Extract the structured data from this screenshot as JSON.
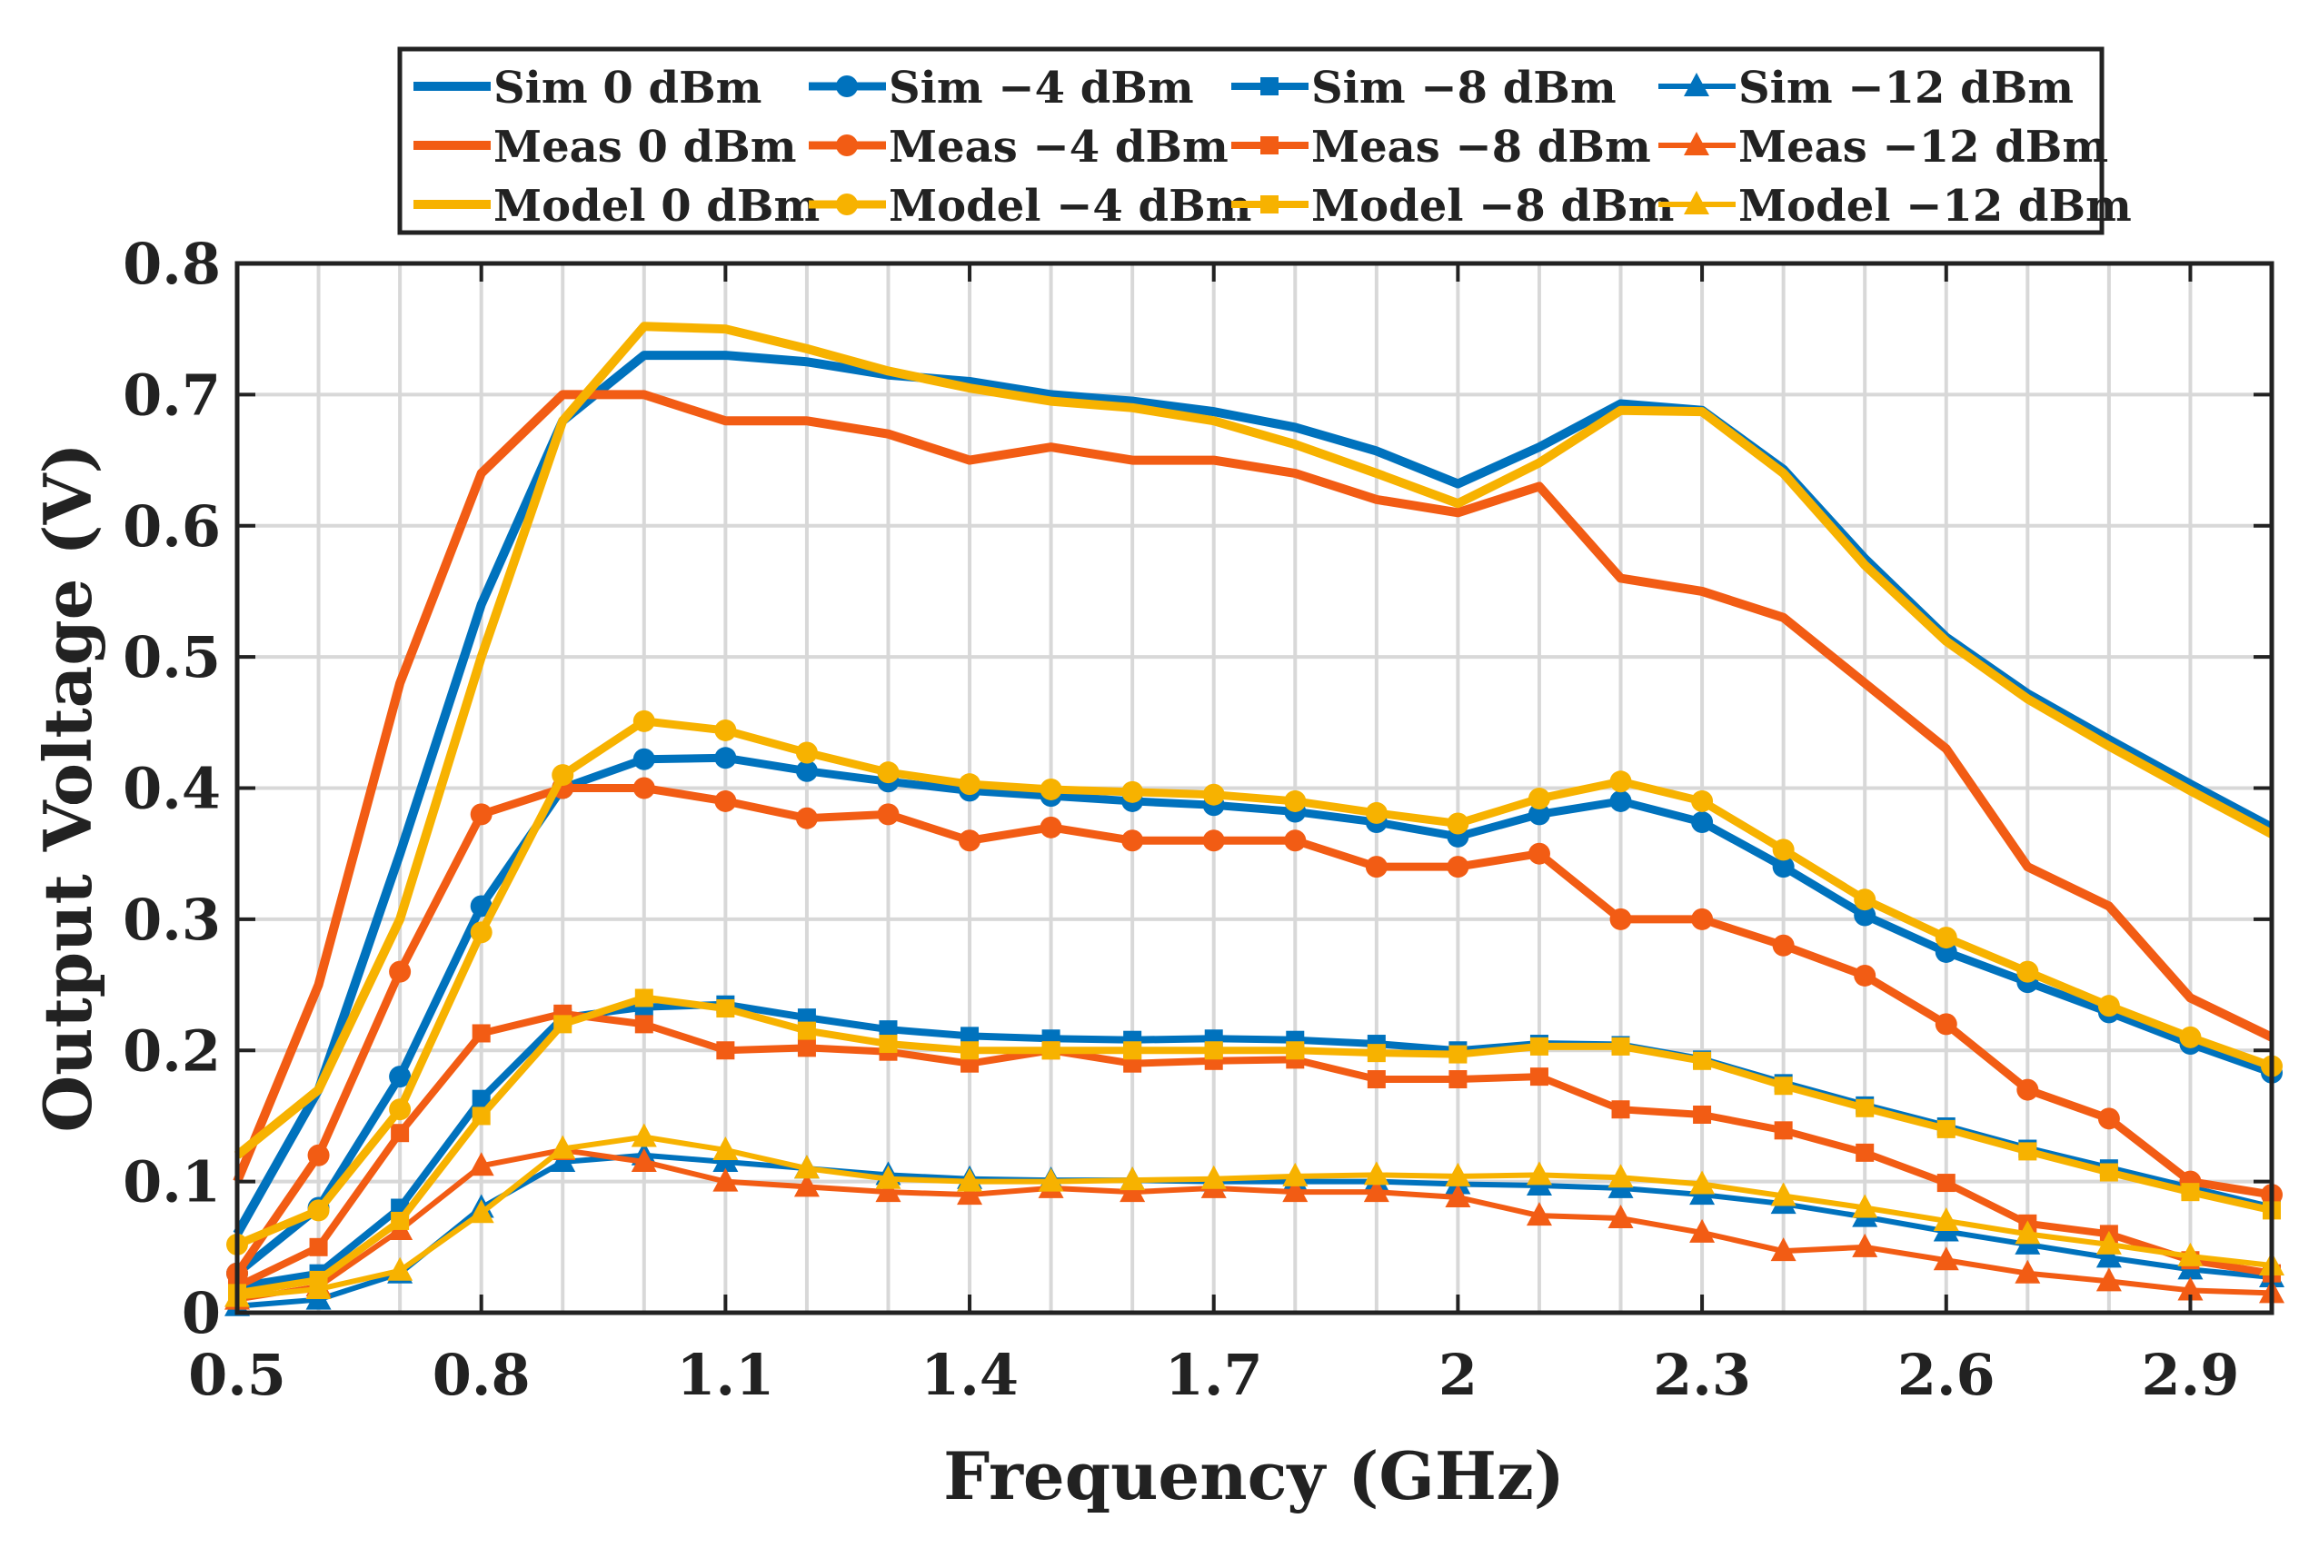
{
  "chart_data": {
    "type": "line",
    "title": "",
    "xlabel": "Frequency (GHz)",
    "ylabel": "Output Voltage (V)",
    "xlim": [
      0.5,
      3.0
    ],
    "ylim": [
      0,
      0.8
    ],
    "xticks": [
      0.5,
      0.8,
      1.1,
      1.4,
      1.7,
      2,
      2.3,
      2.6,
      2.9
    ],
    "xtick_labels": [
      "0.5",
      "0.8",
      "1.1",
      "1.4",
      "1.7",
      "2",
      "2.3",
      "2.6",
      "2.9"
    ],
    "yticks": [
      0,
      0.1,
      0.2,
      0.3,
      0.4,
      0.5,
      0.6,
      0.7,
      0.8
    ],
    "ytick_labels": [
      "0",
      "0.1",
      "0.2",
      "0.3",
      "0.4",
      "0.5",
      "0.6",
      "0.7",
      "0.8"
    ],
    "grid": true,
    "legend_position": "top-outside",
    "colors": {
      "sim": "#0072BD",
      "meas": "#F25C14",
      "model": "#F7B200"
    },
    "x": [
      0.5,
      0.6,
      0.7,
      0.8,
      0.9,
      1.0,
      1.1,
      1.2,
      1.3,
      1.4,
      1.5,
      1.6,
      1.7,
      1.8,
      1.9,
      2.0,
      2.1,
      2.2,
      2.3,
      2.4,
      2.5,
      2.6,
      2.7,
      2.8,
      2.9,
      3.0
    ],
    "series": [
      {
        "name": "Sim 0 dBm",
        "color": "#0072BD",
        "marker": "none",
        "values": [
          0.06,
          0.17,
          0.35,
          0.54,
          0.68,
          0.73,
          0.73,
          0.725,
          0.715,
          0.71,
          0.7,
          0.695,
          0.687,
          0.675,
          0.657,
          0.632,
          0.66,
          0.693,
          0.688,
          0.643,
          0.575,
          0.515,
          0.472,
          0.437,
          0.403,
          0.37
        ]
      },
      {
        "name": "Sim −4 dBm",
        "color": "#0072BD",
        "marker": "circle",
        "values": [
          0.03,
          0.08,
          0.18,
          0.31,
          0.4,
          0.422,
          0.423,
          0.413,
          0.405,
          0.398,
          0.394,
          0.39,
          0.387,
          0.382,
          0.374,
          0.363,
          0.38,
          0.39,
          0.374,
          0.34,
          0.303,
          0.275,
          0.252,
          0.229,
          0.205,
          0.183
        ]
      },
      {
        "name": "Sim −8 dBm",
        "color": "#0072BD",
        "marker": "square",
        "values": [
          0.02,
          0.03,
          0.08,
          0.163,
          0.225,
          0.233,
          0.235,
          0.225,
          0.216,
          0.211,
          0.209,
          0.208,
          0.209,
          0.208,
          0.205,
          0.2,
          0.205,
          0.204,
          0.193,
          0.175,
          0.158,
          0.142,
          0.125,
          0.11,
          0.095,
          0.08
        ]
      },
      {
        "name": "Sim −12 dBm",
        "color": "#0072BD",
        "marker": "triangle",
        "values": [
          0.005,
          0.01,
          0.03,
          0.08,
          0.115,
          0.12,
          0.115,
          0.11,
          0.105,
          0.102,
          0.101,
          0.101,
          0.1,
          0.1,
          0.1,
          0.098,
          0.097,
          0.095,
          0.09,
          0.083,
          0.073,
          0.062,
          0.052,
          0.042,
          0.033,
          0.027
        ]
      },
      {
        "name": "Meas 0 dBm",
        "color": "#F25C14",
        "marker": "none",
        "values": [
          0.1,
          0.25,
          0.48,
          0.64,
          0.7,
          0.7,
          0.68,
          0.68,
          0.67,
          0.65,
          0.66,
          0.65,
          0.65,
          0.64,
          0.62,
          0.61,
          0.63,
          0.56,
          0.55,
          0.53,
          0.48,
          0.43,
          0.34,
          0.31,
          0.24,
          0.21
        ]
      },
      {
        "name": "Meas −4 dBm",
        "color": "#F25C14",
        "marker": "circle",
        "values": [
          0.03,
          0.12,
          0.26,
          0.38,
          0.4,
          0.4,
          0.39,
          0.377,
          0.38,
          0.36,
          0.37,
          0.36,
          0.36,
          0.36,
          0.34,
          0.34,
          0.35,
          0.3,
          0.3,
          0.28,
          0.257,
          0.22,
          0.17,
          0.148,
          0.1,
          0.09
        ]
      },
      {
        "name": "Meas −8 dBm",
        "color": "#F25C14",
        "marker": "square",
        "values": [
          0.02,
          0.05,
          0.137,
          0.213,
          0.228,
          0.22,
          0.2,
          0.202,
          0.199,
          0.19,
          0.2,
          0.19,
          0.192,
          0.193,
          0.178,
          0.178,
          0.18,
          0.155,
          0.151,
          0.139,
          0.122,
          0.099,
          0.068,
          0.06,
          0.04,
          0.03
        ]
      },
      {
        "name": "Meas −12 dBm",
        "color": "#F25C14",
        "marker": "triangle",
        "values": [
          0.01,
          0.02,
          0.063,
          0.112,
          0.124,
          0.115,
          0.1,
          0.096,
          0.092,
          0.09,
          0.095,
          0.092,
          0.095,
          0.092,
          0.092,
          0.088,
          0.074,
          0.072,
          0.061,
          0.047,
          0.05,
          0.04,
          0.03,
          0.024,
          0.017,
          0.015
        ]
      },
      {
        "name": "Model 0 dBm",
        "color": "#F7B200",
        "marker": "none",
        "values": [
          0.12,
          0.17,
          0.3,
          0.5,
          0.68,
          0.752,
          0.75,
          0.735,
          0.718,
          0.705,
          0.695,
          0.69,
          0.68,
          0.662,
          0.64,
          0.617,
          0.648,
          0.688,
          0.687,
          0.64,
          0.57,
          0.512,
          0.468,
          0.432,
          0.398,
          0.365
        ]
      },
      {
        "name": "Model −4 dBm",
        "color": "#F7B200",
        "marker": "circle",
        "values": [
          0.052,
          0.078,
          0.155,
          0.29,
          0.41,
          0.451,
          0.444,
          0.427,
          0.412,
          0.403,
          0.399,
          0.397,
          0.395,
          0.39,
          0.381,
          0.373,
          0.392,
          0.405,
          0.39,
          0.353,
          0.315,
          0.286,
          0.26,
          0.234,
          0.21,
          0.188
        ]
      },
      {
        "name": "Model −8 dBm",
        "color": "#F7B200",
        "marker": "square",
        "values": [
          0.015,
          0.025,
          0.07,
          0.15,
          0.22,
          0.24,
          0.232,
          0.215,
          0.205,
          0.2,
          0.2,
          0.2,
          0.2,
          0.2,
          0.198,
          0.197,
          0.203,
          0.203,
          0.192,
          0.173,
          0.156,
          0.14,
          0.123,
          0.107,
          0.092,
          0.078
        ]
      },
      {
        "name": "Model −12 dBm",
        "color": "#F7B200",
        "marker": "triangle",
        "values": [
          0.012,
          0.018,
          0.032,
          0.076,
          0.125,
          0.134,
          0.124,
          0.11,
          0.102,
          0.1,
          0.1,
          0.101,
          0.102,
          0.104,
          0.105,
          0.104,
          0.105,
          0.103,
          0.098,
          0.089,
          0.08,
          0.07,
          0.06,
          0.052,
          0.043,
          0.036
        ]
      }
    ]
  }
}
